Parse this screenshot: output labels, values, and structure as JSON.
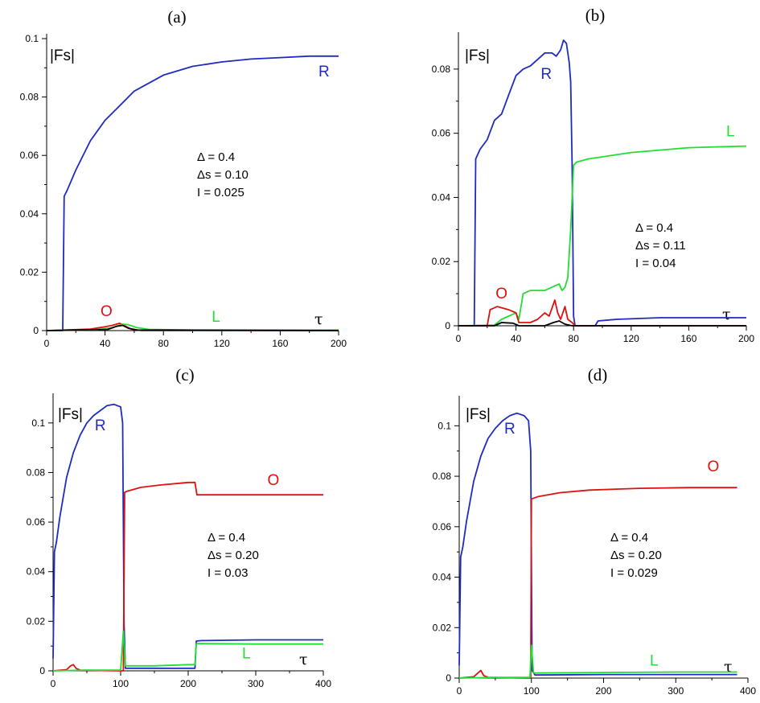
{
  "colors": {
    "R": "#1f2bbf",
    "L": "#22dd33",
    "O": "#e01010",
    "black": "#000000"
  },
  "chart_data": [
    {
      "type": "line",
      "panel": "(a)",
      "ylabel": "|Fs|",
      "xlabel": "τ",
      "xlim": [
        0,
        200
      ],
      "ylim": [
        0,
        0.1
      ],
      "xticks": [
        0,
        40,
        80,
        120,
        160,
        200
      ],
      "yticks": [
        0,
        0.02,
        0.04,
        0.06,
        0.08,
        0.1
      ],
      "ytick_labels": [
        "0",
        "0.02",
        "0.04",
        "0.06",
        "0.08",
        "0.1"
      ],
      "params": [
        "Δ = 0.4",
        "Δs = 0.10",
        "I = 0.025"
      ],
      "series": [
        {
          "name": "R",
          "color": "#1f2bbf",
          "points": [
            [
              0,
              0
            ],
            [
              11,
              0
            ],
            [
              12,
              0.046
            ],
            [
              14,
              0.048
            ],
            [
              20,
              0.055
            ],
            [
              30,
              0.065
            ],
            [
              40,
              0.072
            ],
            [
              50,
              0.077
            ],
            [
              60,
              0.082
            ],
            [
              80,
              0.0875
            ],
            [
              100,
              0.0905
            ],
            [
              120,
              0.092
            ],
            [
              140,
              0.093
            ],
            [
              160,
              0.0935
            ],
            [
              180,
              0.094
            ],
            [
              200,
              0.094
            ]
          ]
        },
        {
          "name": "O",
          "color": "#e01010",
          "points": [
            [
              0,
              0
            ],
            [
              30,
              0.0005
            ],
            [
              40,
              0.0013
            ],
            [
              45,
              0.0018
            ],
            [
              50,
              0.0025
            ],
            [
              54,
              0.0015
            ],
            [
              58,
              0.0005
            ],
            [
              65,
              0
            ],
            [
              200,
              0
            ]
          ]
        },
        {
          "name": "L",
          "color": "#22dd33",
          "points": [
            [
              0,
              0
            ],
            [
              35,
              0.0003
            ],
            [
              45,
              0.001
            ],
            [
              52,
              0.0022
            ],
            [
              56,
              0.002
            ],
            [
              62,
              0.001
            ],
            [
              70,
              0.0004
            ],
            [
              100,
              0.0002
            ],
            [
              200,
              0.0002
            ]
          ]
        },
        {
          "name": "",
          "color": "#000000",
          "points": [
            [
              0,
              0
            ],
            [
              42,
              0.0004
            ],
            [
              48,
              0.0015
            ],
            [
              52,
              0.0018
            ],
            [
              56,
              0.0008
            ],
            [
              62,
              0.0002
            ],
            [
              200,
              0
            ]
          ]
        }
      ],
      "labels": [
        {
          "text": "R",
          "x": 190,
          "y": 0.087,
          "color": "#1f2bbf"
        },
        {
          "text": "O",
          "x": 41,
          "y": 0.005,
          "color": "#e01010"
        },
        {
          "text": "L",
          "x": 116,
          "y": 0.003,
          "color": "#22dd33"
        }
      ]
    },
    {
      "type": "line",
      "panel": "(b)",
      "ylabel": "|Fs|",
      "xlabel": "τ",
      "xlim": [
        0,
        200
      ],
      "ylim": [
        0,
        0.09
      ],
      "xticks": [
        0,
        40,
        80,
        120,
        160,
        200
      ],
      "yticks": [
        0,
        0.02,
        0.04,
        0.06,
        0.08
      ],
      "ytick_labels": [
        "0",
        "0.02",
        "0.04",
        "0.06",
        "0.08"
      ],
      "params": [
        "Δ = 0.4",
        "Δs = 0.11",
        "I = 0.04"
      ],
      "series": [
        {
          "name": "R",
          "color": "#1f2bbf",
          "points": [
            [
              0,
              0
            ],
            [
              11,
              0
            ],
            [
              12,
              0.052
            ],
            [
              15,
              0.055
            ],
            [
              20,
              0.058
            ],
            [
              25,
              0.064
            ],
            [
              30,
              0.066
            ],
            [
              35,
              0.072
            ],
            [
              40,
              0.078
            ],
            [
              45,
              0.08
            ],
            [
              50,
              0.081
            ],
            [
              55,
              0.083
            ],
            [
              60,
              0.085
            ],
            [
              65,
              0.085
            ],
            [
              68,
              0.084
            ],
            [
              71,
              0.086
            ],
            [
              73,
              0.089
            ],
            [
              75,
              0.088
            ],
            [
              77,
              0.082
            ],
            [
              78,
              0.076
            ],
            [
              79,
              0.05
            ],
            [
              80,
              0.003
            ],
            [
              81,
              0
            ],
            [
              95,
              0
            ],
            [
              97,
              0.0015
            ],
            [
              110,
              0.002
            ],
            [
              140,
              0.0025
            ],
            [
              200,
              0.0025
            ]
          ]
        },
        {
          "name": "L",
          "color": "#22dd33",
          "points": [
            [
              0,
              0
            ],
            [
              25,
              0.0002
            ],
            [
              30,
              0.002
            ],
            [
              35,
              0.003
            ],
            [
              40,
              0.004
            ],
            [
              42,
              0.002
            ],
            [
              45,
              0.01
            ],
            [
              50,
              0.011
            ],
            [
              60,
              0.011
            ],
            [
              65,
              0.012
            ],
            [
              70,
              0.013
            ],
            [
              72,
              0.011
            ],
            [
              74,
              0.012
            ],
            [
              76,
              0.015
            ],
            [
              78,
              0.03
            ],
            [
              80,
              0.05
            ],
            [
              82,
              0.051
            ],
            [
              90,
              0.052
            ],
            [
              120,
              0.054
            ],
            [
              160,
              0.0555
            ],
            [
              200,
              0.056
            ]
          ]
        },
        {
          "name": "O",
          "color": "#e01010",
          "points": [
            [
              0,
              0
            ],
            [
              20,
              0
            ],
            [
              22,
              0.005
            ],
            [
              27,
              0.006
            ],
            [
              35,
              0.005
            ],
            [
              40,
              0.004
            ],
            [
              42,
              0.001
            ],
            [
              50,
              0.001
            ],
            [
              55,
              0.002
            ],
            [
              60,
              0.004
            ],
            [
              63,
              0.003
            ],
            [
              67,
              0.008
            ],
            [
              69,
              0.004
            ],
            [
              71,
              0.002
            ],
            [
              74,
              0.006
            ],
            [
              76,
              0.002
            ],
            [
              79,
              0.001
            ],
            [
              81,
              0
            ],
            [
              200,
              0
            ]
          ]
        },
        {
          "name": "",
          "color": "#000000",
          "points": [
            [
              0,
              0
            ],
            [
              25,
              0
            ],
            [
              30,
              0.001
            ],
            [
              38,
              0.0008
            ],
            [
              42,
              0
            ],
            [
              60,
              0
            ],
            [
              66,
              0.001
            ],
            [
              70,
              0.0015
            ],
            [
              74,
              0.0005
            ],
            [
              79,
              0
            ],
            [
              200,
              0
            ]
          ]
        }
      ],
      "labels": [
        {
          "text": "R",
          "x": 61,
          "y": 0.077,
          "color": "#1f2bbf"
        },
        {
          "text": "L",
          "x": 189,
          "y": 0.059,
          "color": "#22dd33"
        },
        {
          "text": "O",
          "x": 30,
          "y": 0.0085,
          "color": "#e01010"
        }
      ]
    },
    {
      "type": "line",
      "panel": "(c)",
      "ylabel": "|Fs|",
      "xlabel": "τ",
      "xlim": [
        0,
        400
      ],
      "ylim": [
        0,
        0.11
      ],
      "xticks": [
        0,
        100,
        200,
        300,
        400
      ],
      "yticks": [
        0,
        0.02,
        0.04,
        0.06,
        0.08,
        0.1
      ],
      "ytick_labels": [
        "0",
        "0.02",
        "0.04",
        "0.06",
        "0.08",
        "0.1"
      ],
      "params": [
        "Δ = 0.4",
        "Δs = 0.20",
        "I = 0.03"
      ],
      "series": [
        {
          "name": "R",
          "color": "#1f2bbf",
          "points": [
            [
              0,
              0.005
            ],
            [
              2,
              0.048
            ],
            [
              5,
              0.052
            ],
            [
              10,
              0.062
            ],
            [
              20,
              0.078
            ],
            [
              30,
              0.088
            ],
            [
              40,
              0.095
            ],
            [
              50,
              0.1
            ],
            [
              60,
              0.103
            ],
            [
              70,
              0.105
            ],
            [
              80,
              0.107
            ],
            [
              90,
              0.1075
            ],
            [
              100,
              0.1065
            ],
            [
              103,
              0.1
            ],
            [
              105,
              0.02
            ],
            [
              107,
              0.001
            ],
            [
              150,
              0.001
            ],
            [
              200,
              0.001
            ],
            [
              210,
              0.001
            ],
            [
              212,
              0.012
            ],
            [
              220,
              0.0122
            ],
            [
              300,
              0.0125
            ],
            [
              400,
              0.0125
            ]
          ]
        },
        {
          "name": "O",
          "color": "#e01010",
          "points": [
            [
              0,
              0
            ],
            [
              20,
              0.0005
            ],
            [
              26,
              0.002
            ],
            [
              30,
              0.0025
            ],
            [
              34,
              0.001
            ],
            [
              40,
              0.0003
            ],
            [
              100,
              0
            ],
            [
              104,
              0
            ],
            [
              106,
              0.072
            ],
            [
              110,
              0.0725
            ],
            [
              130,
              0.074
            ],
            [
              160,
              0.075
            ],
            [
              200,
              0.076
            ],
            [
              210,
              0.076
            ],
            [
              213,
              0.071
            ],
            [
              300,
              0.071
            ],
            [
              400,
              0.071
            ]
          ]
        },
        {
          "name": "L",
          "color": "#22dd33",
          "points": [
            [
              0,
              0
            ],
            [
              50,
              0.0003
            ],
            [
              100,
              0.0003
            ],
            [
              104,
              0.016
            ],
            [
              107,
              0.002
            ],
            [
              150,
              0.002
            ],
            [
              200,
              0.0025
            ],
            [
              210,
              0.0025
            ],
            [
              212,
              0.011
            ],
            [
              300,
              0.0108
            ],
            [
              400,
              0.0108
            ]
          ]
        }
      ],
      "labels": [
        {
          "text": "R",
          "x": 70,
          "y": 0.097,
          "color": "#1f2bbf"
        },
        {
          "text": "O",
          "x": 326,
          "y": 0.075,
          "color": "#e01010"
        },
        {
          "text": "L",
          "x": 286,
          "y": 0.005,
          "color": "#22dd33"
        }
      ]
    },
    {
      "type": "line",
      "panel": "(d)",
      "ylabel": "|Fs|",
      "xlabel": "τ",
      "xlim": [
        0,
        400
      ],
      "ylim": [
        0,
        0.11
      ],
      "xticks": [
        0,
        100,
        200,
        300,
        400
      ],
      "yticks": [
        0,
        0.02,
        0.04,
        0.06,
        0.08,
        0.1
      ],
      "ytick_labels": [
        "0",
        "0.02",
        "0.04",
        "0.06",
        "0.08",
        "0.1"
      ],
      "params": [
        "Δ = 0.4",
        "Δs = 0.20",
        "I = 0.029"
      ],
      "series": [
        {
          "name": "R",
          "color": "#1f2bbf",
          "points": [
            [
              0,
              0.005
            ],
            [
              2,
              0.048
            ],
            [
              5,
              0.052
            ],
            [
              10,
              0.062
            ],
            [
              20,
              0.078
            ],
            [
              30,
              0.088
            ],
            [
              40,
              0.095
            ],
            [
              50,
              0.099
            ],
            [
              60,
              0.102
            ],
            [
              70,
              0.104
            ],
            [
              80,
              0.105
            ],
            [
              90,
              0.104
            ],
            [
              96,
              0.102
            ],
            [
              99,
              0.09
            ],
            [
              101,
              0.003
            ],
            [
              105,
              0.0012
            ],
            [
              200,
              0.0014
            ],
            [
              300,
              0.0014
            ],
            [
              385,
              0.0014
            ]
          ]
        },
        {
          "name": "O",
          "color": "#e01010",
          "points": [
            [
              0,
              0
            ],
            [
              20,
              0.0005
            ],
            [
              26,
              0.002
            ],
            [
              30,
              0.003
            ],
            [
              34,
              0.001
            ],
            [
              40,
              0.0003
            ],
            [
              99,
              0
            ],
            [
              100,
              0.071
            ],
            [
              110,
              0.072
            ],
            [
              140,
              0.0735
            ],
            [
              180,
              0.0745
            ],
            [
              250,
              0.0752
            ],
            [
              320,
              0.0755
            ],
            [
              385,
              0.0755
            ]
          ]
        },
        {
          "name": "L",
          "color": "#22dd33",
          "points": [
            [
              0,
              0
            ],
            [
              50,
              0.0003
            ],
            [
              98,
              0.0003
            ],
            [
              100,
              0.013
            ],
            [
              103,
              0.002
            ],
            [
              200,
              0.0022
            ],
            [
              300,
              0.0024
            ],
            [
              385,
              0.0024
            ]
          ]
        }
      ],
      "labels": [
        {
          "text": "R",
          "x": 70,
          "y": 0.097,
          "color": "#1f2bbf"
        },
        {
          "text": "O",
          "x": 352,
          "y": 0.082,
          "color": "#e01010"
        },
        {
          "text": "L",
          "x": 270,
          "y": 0.005,
          "color": "#22dd33"
        }
      ]
    }
  ]
}
